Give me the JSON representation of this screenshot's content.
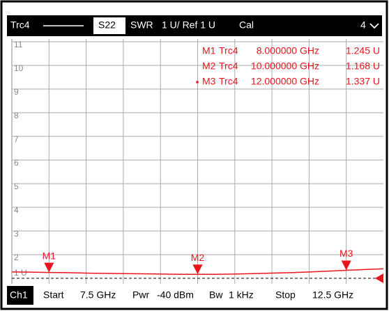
{
  "header": {
    "trace": "Trc4",
    "param": "S22",
    "format": "SWR",
    "scale": "1 U/ Ref 1 U",
    "cal": "Cal",
    "window": "4"
  },
  "footer": {
    "channel": "Ch1",
    "start_label": "Start",
    "start": "7.5 GHz",
    "power_label": "Pwr",
    "power": "-40 dBm",
    "bw_label": "Bw",
    "bw": "1 kHz",
    "stop_label": "Stop",
    "stop": "12.5 GHz"
  },
  "chart_data": {
    "type": "line",
    "color": "#e8141e",
    "xlim": [
      7.5,
      12.5
    ],
    "ylim": [
      1,
      11
    ],
    "yticks": [
      {
        "value": 1,
        "label": "1 U"
      },
      2,
      3,
      4,
      5,
      6,
      7,
      8,
      9,
      10,
      11
    ],
    "grid": true,
    "x": [
      7.5,
      7.75,
      8,
      8.25,
      8.5,
      8.75,
      9,
      9.25,
      9.5,
      9.75,
      10,
      10.25,
      10.5,
      10.75,
      11,
      11.25,
      11.5,
      11.75,
      12,
      12.25,
      12.5
    ],
    "series": [
      {
        "name": "Trc4",
        "color": "#e8141e",
        "values": [
          1.27,
          1.26,
          1.245,
          1.24,
          1.22,
          1.21,
          1.2,
          1.19,
          1.18,
          1.17,
          1.168,
          1.17,
          1.18,
          1.2,
          1.22,
          1.24,
          1.27,
          1.3,
          1.337,
          1.37,
          1.4
        ]
      }
    ],
    "markers": [
      {
        "name": "M1",
        "trace": "Trc4",
        "x": 8,
        "x_label": "8.000000 GHz",
        "value": 1.245,
        "value_label": "1.245 U"
      },
      {
        "name": "M2",
        "trace": "Trc4",
        "x": 10,
        "x_label": "10.000000 GHz",
        "value": 1.168,
        "value_label": "1.168 U"
      },
      {
        "name": "M3",
        "trace": "Trc4",
        "x": 12,
        "x_label": "12.000000 GHz",
        "value": 1.337,
        "value_label": "1.337 U"
      }
    ]
  }
}
